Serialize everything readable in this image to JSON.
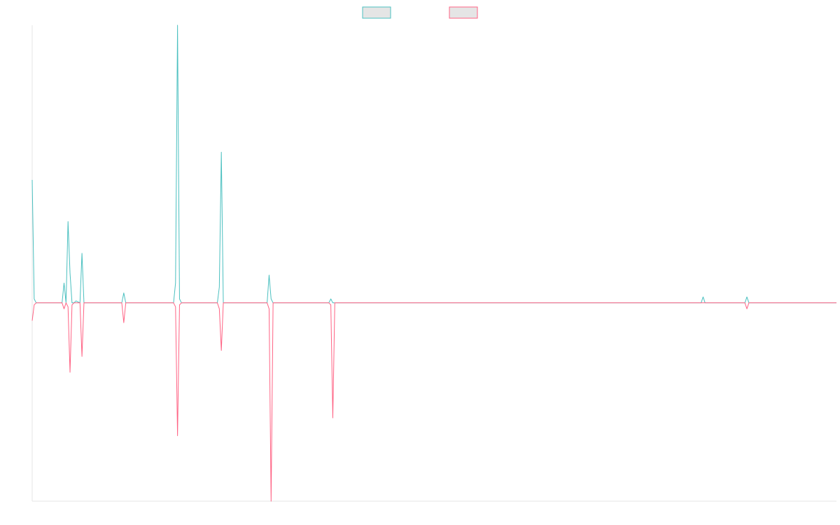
{
  "chart_data": {
    "type": "line",
    "title": "",
    "xlabel": "",
    "ylabel": "",
    "grid": false,
    "legend_position": "top-center",
    "colors": {
      "series_1": "#4bc0c0",
      "series_2": "#ff6384",
      "axis": "#e5e5e5",
      "legend_fill": "#e5e5e5"
    },
    "ylim": [
      -100,
      140
    ],
    "xlim": [
      0,
      404
    ],
    "series": [
      {
        "name": "",
        "color": "#4bc0c0",
        "points": [
          [
            0,
            62
          ],
          [
            1,
            2
          ],
          [
            2,
            0
          ],
          [
            15,
            0
          ],
          [
            16,
            10
          ],
          [
            17,
            0
          ],
          [
            18,
            41
          ],
          [
            19,
            15
          ],
          [
            20,
            0
          ],
          [
            21,
            0
          ],
          [
            22,
            1
          ],
          [
            24,
            0
          ],
          [
            25,
            25
          ],
          [
            26,
            0
          ],
          [
            45,
            0
          ],
          [
            46,
            5
          ],
          [
            47,
            0
          ],
          [
            71,
            0
          ],
          [
            72,
            10
          ],
          [
            73,
            140
          ],
          [
            74,
            2
          ],
          [
            75,
            0
          ],
          [
            93,
            0
          ],
          [
            94,
            8
          ],
          [
            95,
            76
          ],
          [
            96,
            0
          ],
          [
            118,
            0
          ],
          [
            119,
            14
          ],
          [
            120,
            2
          ],
          [
            121,
            0
          ],
          [
            149,
            0
          ],
          [
            150,
            2
          ],
          [
            151,
            0
          ],
          [
            336,
            0
          ],
          [
            337,
            3
          ],
          [
            338,
            0
          ],
          [
            358,
            0
          ],
          [
            359,
            3
          ],
          [
            360,
            0
          ],
          [
            404,
            0
          ]
        ]
      },
      {
        "name": "",
        "color": "#ff6384",
        "points": [
          [
            0,
            -9
          ],
          [
            1,
            -1
          ],
          [
            2,
            0
          ],
          [
            15,
            0
          ],
          [
            16,
            -3
          ],
          [
            17,
            0
          ],
          [
            18,
            -2
          ],
          [
            19,
            -35
          ],
          [
            20,
            -1
          ],
          [
            21,
            0
          ],
          [
            24,
            0
          ],
          [
            25,
            -27
          ],
          [
            26,
            0
          ],
          [
            45,
            0
          ],
          [
            46,
            -10
          ],
          [
            47,
            0
          ],
          [
            71,
            0
          ],
          [
            72,
            -2
          ],
          [
            73,
            -67
          ],
          [
            74,
            -1
          ],
          [
            75,
            0
          ],
          [
            93,
            0
          ],
          [
            94,
            -3
          ],
          [
            95,
            -24
          ],
          [
            96,
            0
          ],
          [
            118,
            0
          ],
          [
            119,
            -3
          ],
          [
            120,
            -100
          ],
          [
            121,
            0
          ],
          [
            149,
            0
          ],
          [
            150,
            -1
          ],
          [
            151,
            -58
          ],
          [
            152,
            0
          ],
          [
            358,
            0
          ],
          [
            359,
            -3
          ],
          [
            360,
            0
          ],
          [
            404,
            0
          ]
        ]
      }
    ]
  }
}
